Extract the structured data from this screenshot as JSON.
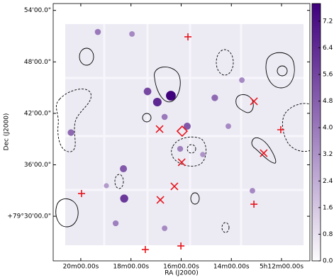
{
  "chart_data": {
    "type": "sky-map",
    "xlabel": "RA (J2000)",
    "ylabel": "Dec (J2000)",
    "xlim": [
      21.1,
      10.87
    ],
    "xticks": [
      {
        "value": 20,
        "label": "20m00.00s"
      },
      {
        "value": 18,
        "label": "18m00.00s"
      },
      {
        "value": 16,
        "label": "16m00.00s"
      },
      {
        "value": 14,
        "label": "14m00.00s"
      },
      {
        "value": 12,
        "label": "5h12m00.00s"
      }
    ],
    "ylim": [
      24.8,
      54.8
    ],
    "yticks": [
      {
        "value": 54,
        "label": "54'00.0\""
      },
      {
        "value": 48,
        "label": "48'00.0\""
      },
      {
        "value": 42,
        "label": "42'00.0\""
      },
      {
        "value": 36,
        "label": "36'00.0\""
      },
      {
        "value": 30,
        "label": "+79°30'00.0\""
      }
    ],
    "colormap": [
      "#fcfbfd",
      "#3f007d"
    ],
    "colorbar": {
      "lim": [
        0,
        7.73
      ],
      "ticks": [
        {
          "value": 0,
          "label": "0.0"
        },
        {
          "value": 0.8,
          "label": "0.8"
        },
        {
          "value": 1.6,
          "label": "1.6"
        },
        {
          "value": 2.4,
          "label": "2.4"
        },
        {
          "value": 3.2,
          "label": "3.2"
        },
        {
          "value": 4,
          "label": "4.0"
        },
        {
          "value": 4.8,
          "label": "4.8"
        },
        {
          "value": 5.6,
          "label": "5.6"
        },
        {
          "value": 6.4,
          "label": "6.4"
        },
        {
          "value": 7.2,
          "label": "7.2"
        }
      ]
    },
    "sources": {
      "x": [
        16.41,
        16.95,
        17.34,
        15.76,
        18.27,
        18.3,
        20.39,
        14.66,
        19.32,
        17.96,
        16.66,
        16.04,
        13.16,
        14.12,
        18.61,
        16.66,
        13.58,
        18.98,
        15.14
      ],
      "y": [
        44.06,
        43.31,
        44.55,
        40.5,
        32.07,
        35.54,
        39.76,
        43.81,
        51.49,
        51.25,
        41.58,
        37.86,
        32.98,
        40.5,
        29.18,
        28.6,
        45.87,
        33.56,
        37.2
      ],
      "values": [
        7.7,
        6.5,
        5.5,
        5,
        6,
        5,
        4.5,
        4.5,
        4,
        3.5,
        4,
        3.8,
        3.5,
        3.5,
        3.8,
        3.5,
        3.5,
        3,
        3.2
      ]
    },
    "markers": [
      {
        "shape": "plus",
        "color": "#e8141c",
        "x": [
          15.73,
          19.97,
          12.03,
          13.1,
          17.43,
          16.01
        ],
        "y": [
          50.92,
          32.65,
          40.09,
          31.41,
          26.12,
          26.54
        ]
      },
      {
        "shape": "cross",
        "color": "#e8141c",
        "x": [
          13.1,
          16.86,
          12.71,
          15.98,
          16.27,
          16.83
        ],
        "y": [
          43.4,
          40.17,
          37.36,
          36.29,
          33.48,
          31.91
        ]
      },
      {
        "shape": "diamond",
        "color": "#e8141c",
        "x": [
          15.96
        ],
        "y": [
          39.92
        ]
      }
    ]
  }
}
